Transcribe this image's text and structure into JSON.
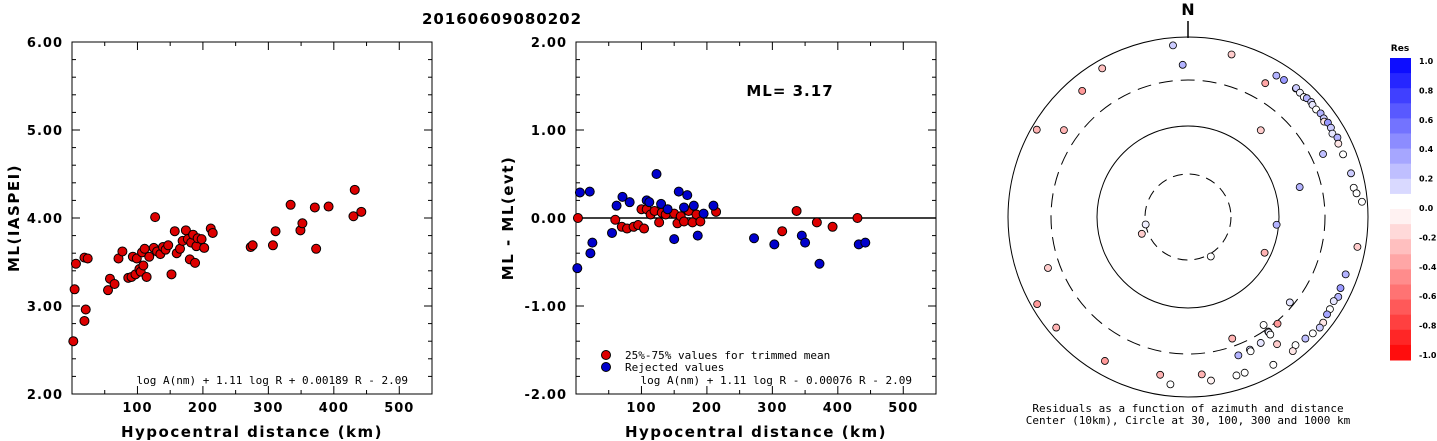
{
  "title": "20160609080202",
  "chart_data": [
    {
      "type": "scatter",
      "xlabel": "Hypocentral distance (km)",
      "ylabel": "ML(IASPEI)",
      "xlim": [
        0,
        550
      ],
      "ylim": [
        2.0,
        6.0
      ],
      "xticks": [
        "100",
        "200",
        "300",
        "400",
        "500"
      ],
      "yticks": [
        "2.00",
        "3.00",
        "4.00",
        "5.00",
        "6.00"
      ],
      "formula": "log A(nm) + 1.11 log R + 0.00189 R - 2.09",
      "color": "#dd0000",
      "points": [
        [
          2,
          2.6
        ],
        [
          4,
          3.19
        ],
        [
          6,
          3.48
        ],
        [
          19,
          2.83
        ],
        [
          21,
          2.96
        ],
        [
          19,
          3.55
        ],
        [
          24,
          3.54
        ],
        [
          55,
          3.18
        ],
        [
          58,
          3.31
        ],
        [
          65,
          3.25
        ],
        [
          71,
          3.54
        ],
        [
          77,
          3.62
        ],
        [
          86,
          3.32
        ],
        [
          91,
          3.33
        ],
        [
          93,
          3.56
        ],
        [
          97,
          3.36
        ],
        [
          99,
          3.54
        ],
        [
          103,
          3.42
        ],
        [
          105,
          3.39
        ],
        [
          107,
          3.61
        ],
        [
          109,
          3.46
        ],
        [
          111,
          3.65
        ],
        [
          114,
          3.33
        ],
        [
          118,
          3.56
        ],
        [
          125,
          3.66
        ],
        [
          127,
          4.01
        ],
        [
          130,
          3.62
        ],
        [
          135,
          3.59
        ],
        [
          139,
          3.67
        ],
        [
          143,
          3.64
        ],
        [
          147,
          3.69
        ],
        [
          152,
          3.36
        ],
        [
          157,
          3.85
        ],
        [
          160,
          3.6
        ],
        [
          165,
          3.65
        ],
        [
          169,
          3.74
        ],
        [
          174,
          3.86
        ],
        [
          177,
          3.76
        ],
        [
          180,
          3.53
        ],
        [
          182,
          3.72
        ],
        [
          185,
          3.81
        ],
        [
          188,
          3.49
        ],
        [
          190,
          3.68
        ],
        [
          192,
          3.77
        ],
        [
          198,
          3.76
        ],
        [
          202,
          3.66
        ],
        [
          212,
          3.88
        ],
        [
          215,
          3.83
        ],
        [
          273,
          3.67
        ],
        [
          276,
          3.69
        ],
        [
          307,
          3.69
        ],
        [
          311,
          3.85
        ],
        [
          334,
          4.15
        ],
        [
          349,
          3.86
        ],
        [
          352,
          3.94
        ],
        [
          373,
          3.65
        ],
        [
          371,
          4.12
        ],
        [
          392,
          4.13
        ],
        [
          430,
          4.02
        ],
        [
          432,
          4.32
        ],
        [
          442,
          4.07
        ]
      ]
    },
    {
      "type": "scatter",
      "xlabel": "Hypocentral distance (km)",
      "ylabel": "ML - ML(evt)",
      "xlim": [
        0,
        550
      ],
      "ylim": [
        -2.0,
        2.0
      ],
      "xticks": [
        "100",
        "200",
        "300",
        "400",
        "500"
      ],
      "yticks": [
        "-2.00",
        "-1.00",
        "0.00",
        "1.00",
        "2.00"
      ],
      "annotation": "ML= 3.17",
      "formula": "log A(nm) + 1.11 log R - 0.00076 R - 2.09",
      "legend": [
        {
          "label": "25%-75% values for trimmed mean",
          "color": "#dd0000"
        },
        {
          "label": "Rejected values",
          "color": "#0000cc"
        }
      ],
      "series": [
        {
          "name": "25%-75% values for trimmed mean",
          "color": "#dd0000",
          "points": [
            [
              3,
              0.0
            ],
            [
              60,
              -0.02
            ],
            [
              70,
              -0.1
            ],
            [
              78,
              -0.12
            ],
            [
              88,
              -0.1
            ],
            [
              95,
              -0.08
            ],
            [
              100,
              0.1
            ],
            [
              104,
              -0.12
            ],
            [
              108,
              0.1
            ],
            [
              114,
              0.04
            ],
            [
              120,
              0.08
            ],
            [
              127,
              -0.05
            ],
            [
              131,
              0.06
            ],
            [
              137,
              0.04
            ],
            [
              150,
              0.05
            ],
            [
              155,
              -0.06
            ],
            [
              160,
              0.02
            ],
            [
              165,
              -0.04
            ],
            [
              172,
              0.08
            ],
            [
              178,
              -0.05
            ],
            [
              184,
              0.04
            ],
            [
              190,
              -0.04
            ],
            [
              214,
              0.07
            ],
            [
              315,
              -0.15
            ],
            [
              337,
              0.08
            ],
            [
              368,
              -0.05
            ],
            [
              392,
              -0.1
            ],
            [
              430,
              0.0
            ]
          ]
        },
        {
          "name": "Rejected values",
          "color": "#0000cc",
          "points": [
            [
              2,
              -0.57
            ],
            [
              6,
              0.29
            ],
            [
              21,
              0.3
            ],
            [
              22,
              -0.4
            ],
            [
              25,
              -0.28
            ],
            [
              55,
              -0.17
            ],
            [
              62,
              0.14
            ],
            [
              71,
              0.24
            ],
            [
              82,
              0.18
            ],
            [
              108,
              0.2
            ],
            [
              112,
              0.18
            ],
            [
              123,
              0.5
            ],
            [
              130,
              0.16
            ],
            [
              140,
              0.1
            ],
            [
              150,
              -0.24
            ],
            [
              157,
              0.3
            ],
            [
              165,
              0.12
            ],
            [
              170,
              0.26
            ],
            [
              180,
              0.14
            ],
            [
              186,
              -0.2
            ],
            [
              195,
              0.05
            ],
            [
              210,
              0.14
            ],
            [
              272,
              -0.23
            ],
            [
              303,
              -0.3
            ],
            [
              345,
              -0.2
            ],
            [
              350,
              -0.28
            ],
            [
              372,
              -0.52
            ],
            [
              432,
              -0.3
            ],
            [
              442,
              -0.28
            ]
          ]
        }
      ]
    }
  ],
  "polar": {
    "north_label": "N",
    "caption_line1": "Residuals as a function of azimuth and distance",
    "caption_line2": "Center (10km), Circle at 30, 100, 300 and 1000 km",
    "points": [
      [
        260,
        30
      ],
      [
        150,
        32
      ],
      [
        250,
        35
      ],
      [
        115,
        85
      ],
      [
        95,
        95
      ],
      [
        40,
        170
      ],
      [
        75,
        180
      ],
      [
        160,
        250
      ],
      [
        130,
        272
      ],
      [
        145,
        265
      ],
      [
        140,
        320
      ],
      [
        145,
        325
      ],
      [
        145,
        335
      ],
      [
        145,
        360
      ],
      [
        150,
        380
      ],
      [
        155,
        390
      ],
      [
        160,
        400
      ],
      [
        155,
        410
      ],
      [
        65,
        420
      ],
      [
        250,
        420
      ],
      [
        305,
        450
      ],
      [
        358,
        460
      ],
      [
        30,
        490
      ],
      [
        145,
        500
      ],
      [
        175,
        540
      ],
      [
        190,
        575
      ],
      [
        320,
        650
      ],
      [
        210,
        680
      ],
      [
        32,
        690
      ],
      [
        35,
        700
      ],
      [
        40,
        710
      ],
      [
        40,
        720
      ],
      [
        42,
        700
      ],
      [
        44,
        690
      ],
      [
        45,
        715
      ],
      [
        47,
        725
      ],
      [
        48,
        705
      ],
      [
        50,
        700
      ],
      [
        52,
        720
      ],
      [
        54,
        710
      ],
      [
        55,
        680
      ],
      [
        56,
        730
      ],
      [
        58,
        725
      ],
      [
        60,
        690
      ],
      [
        62,
        740
      ],
      [
        64,
        700
      ],
      [
        68,
        700
      ],
      [
        75,
        730
      ],
      [
        80,
        720
      ],
      [
        82,
        760
      ],
      [
        85,
        860
      ],
      [
        100,
        800
      ],
      [
        110,
        710
      ],
      [
        115,
        720
      ],
      [
        118,
        760
      ],
      [
        120,
        720
      ],
      [
        123,
        740
      ],
      [
        125,
        750
      ],
      [
        128,
        790
      ],
      [
        130,
        800
      ],
      [
        133,
        770
      ],
      [
        136,
        735
      ],
      [
        140,
        700
      ],
      [
        142,
        760
      ],
      [
        150,
        770
      ],
      [
        160,
        670
      ],
      [
        163,
        670
      ],
      [
        172,
        660
      ],
      [
        186,
        720
      ],
      [
        230,
        800
      ],
      [
        240,
        850
      ],
      [
        300,
        860
      ],
      [
        330,
        790
      ],
      [
        355,
        805
      ],
      [
        15,
        720
      ]
    ],
    "residuals": [
      0.06,
      0.0,
      -0.2,
      -0.3,
      0.3,
      -0.2,
      0.3,
      -0.3,
      0.1,
      0.0,
      -0.4,
      -0.05,
      0.05,
      0.0,
      0.1,
      0.15,
      0.3,
      0.0,
      0.25,
      -0.2,
      -0.3,
      0.3,
      -0.35,
      -0.2,
      -0.3,
      -0.3,
      -0.4,
      -0.4,
      0.3,
      0.4,
      0.1,
      0.2,
      0.05,
      0.0,
      0.3,
      0.2,
      0.1,
      0.0,
      0.3,
      0.2,
      -0.1,
      0.4,
      0.2,
      0.1,
      0.3,
      -0.1,
      0.0,
      0.2,
      0.0,
      0.0,
      0.0,
      -0.2,
      0.3,
      0.4,
      0.3,
      0.1,
      0.0,
      0.35,
      -0.1,
      0.2,
      0.0,
      0.25,
      0.0,
      -0.1,
      0.0,
      0.0,
      0.0,
      -0.05,
      0.0,
      -0.3,
      -0.4,
      -0.3,
      -0.25,
      0.2,
      -0.2
    ]
  },
  "colorbar": {
    "title": "Res",
    "labels": [
      "1.0",
      "0.8",
      "0.6",
      "0.4",
      "0.2",
      "0.0",
      "-0.2",
      "-0.4",
      "-0.6",
      "-0.8",
      "-1.0"
    ]
  }
}
